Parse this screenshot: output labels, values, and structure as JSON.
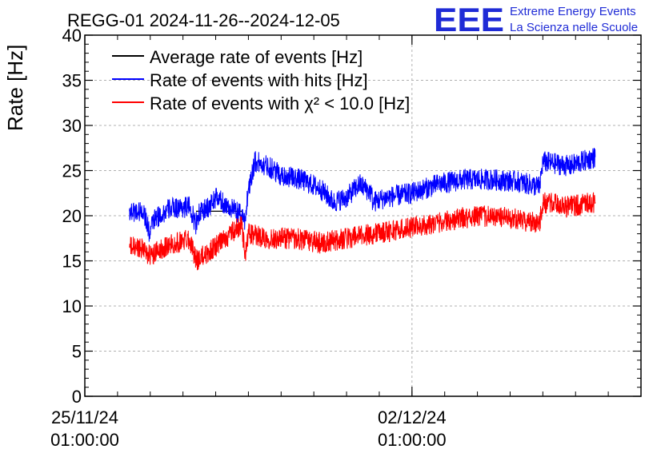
{
  "title": "REGG-01 2024-11-26--2024-12-05",
  "logo": {
    "mark": "EEE",
    "line1": "Extreme Energy Events",
    "line2": "La Scienza nelle Scuole",
    "color": "#1f2bd6"
  },
  "chart_data": {
    "type": "line",
    "title": "REGG-01 2024-11-26--2024-12-05",
    "ylabel": "Rate [Hz]",
    "xlabel": "",
    "ylim": [
      0,
      40
    ],
    "y_ticks": [
      0,
      5,
      10,
      15,
      20,
      25,
      30,
      35,
      40
    ],
    "x_range_days": [
      0.0,
      8.5
    ],
    "x_ticks": [
      {
        "day": 0.0,
        "line1": "25/11/24",
        "line2": "01:00:00"
      },
      {
        "day": 5.0,
        "line1": "02/12/24",
        "line2": "01:00:00"
      }
    ],
    "grid": true,
    "legend_position": "top-left",
    "series": [
      {
        "name": "Average rate of events [Hz]",
        "color": "#000000",
        "x": [
          1.7,
          2.4
        ],
        "values": [
          20.5,
          20.5
        ]
      },
      {
        "name": "Rate of events with hits [Hz]",
        "color": "#0000ff",
        "x": [
          0.68,
          0.9,
          0.99,
          1.05,
          1.3,
          1.6,
          1.7,
          1.72,
          1.9,
          2.0,
          2.4,
          2.45,
          2.5,
          2.6,
          2.8,
          3.0,
          3.3,
          3.6,
          3.8,
          4.0,
          4.2,
          4.38,
          4.4,
          4.6,
          5.0,
          5.4,
          5.8,
          6.2,
          6.6,
          6.95,
          7.0,
          7.4,
          7.8
        ],
        "values": [
          20.5,
          20.5,
          18.0,
          19.5,
          20.8,
          21.0,
          19.0,
          20.0,
          21.0,
          22.0,
          20.0,
          19.5,
          23.0,
          26.0,
          25.5,
          24.5,
          24.0,
          23.0,
          21.5,
          22.0,
          23.5,
          22.5,
          21.5,
          22.0,
          22.5,
          23.5,
          24.0,
          24.0,
          23.8,
          23.2,
          26.0,
          25.5,
          26.5
        ]
      },
      {
        "name": "Rate of events with χ² < 10.0 [Hz]",
        "color": "#ff0000",
        "x": [
          0.68,
          0.9,
          0.99,
          1.2,
          1.4,
          1.6,
          1.7,
          1.9,
          2.4,
          2.45,
          2.5,
          2.8,
          3.2,
          3.6,
          4.0,
          4.4,
          4.8,
          5.2,
          5.6,
          6.0,
          6.4,
          6.95,
          7.0,
          7.4,
          7.8
        ],
        "values": [
          16.5,
          16.5,
          15.5,
          16.5,
          17.0,
          17.5,
          15.0,
          16.0,
          19.0,
          15.5,
          18.0,
          17.5,
          17.5,
          17.0,
          17.5,
          18.0,
          18.5,
          19.0,
          19.5,
          20.0,
          19.8,
          19.2,
          21.5,
          21.0,
          21.5
        ]
      }
    ]
  }
}
